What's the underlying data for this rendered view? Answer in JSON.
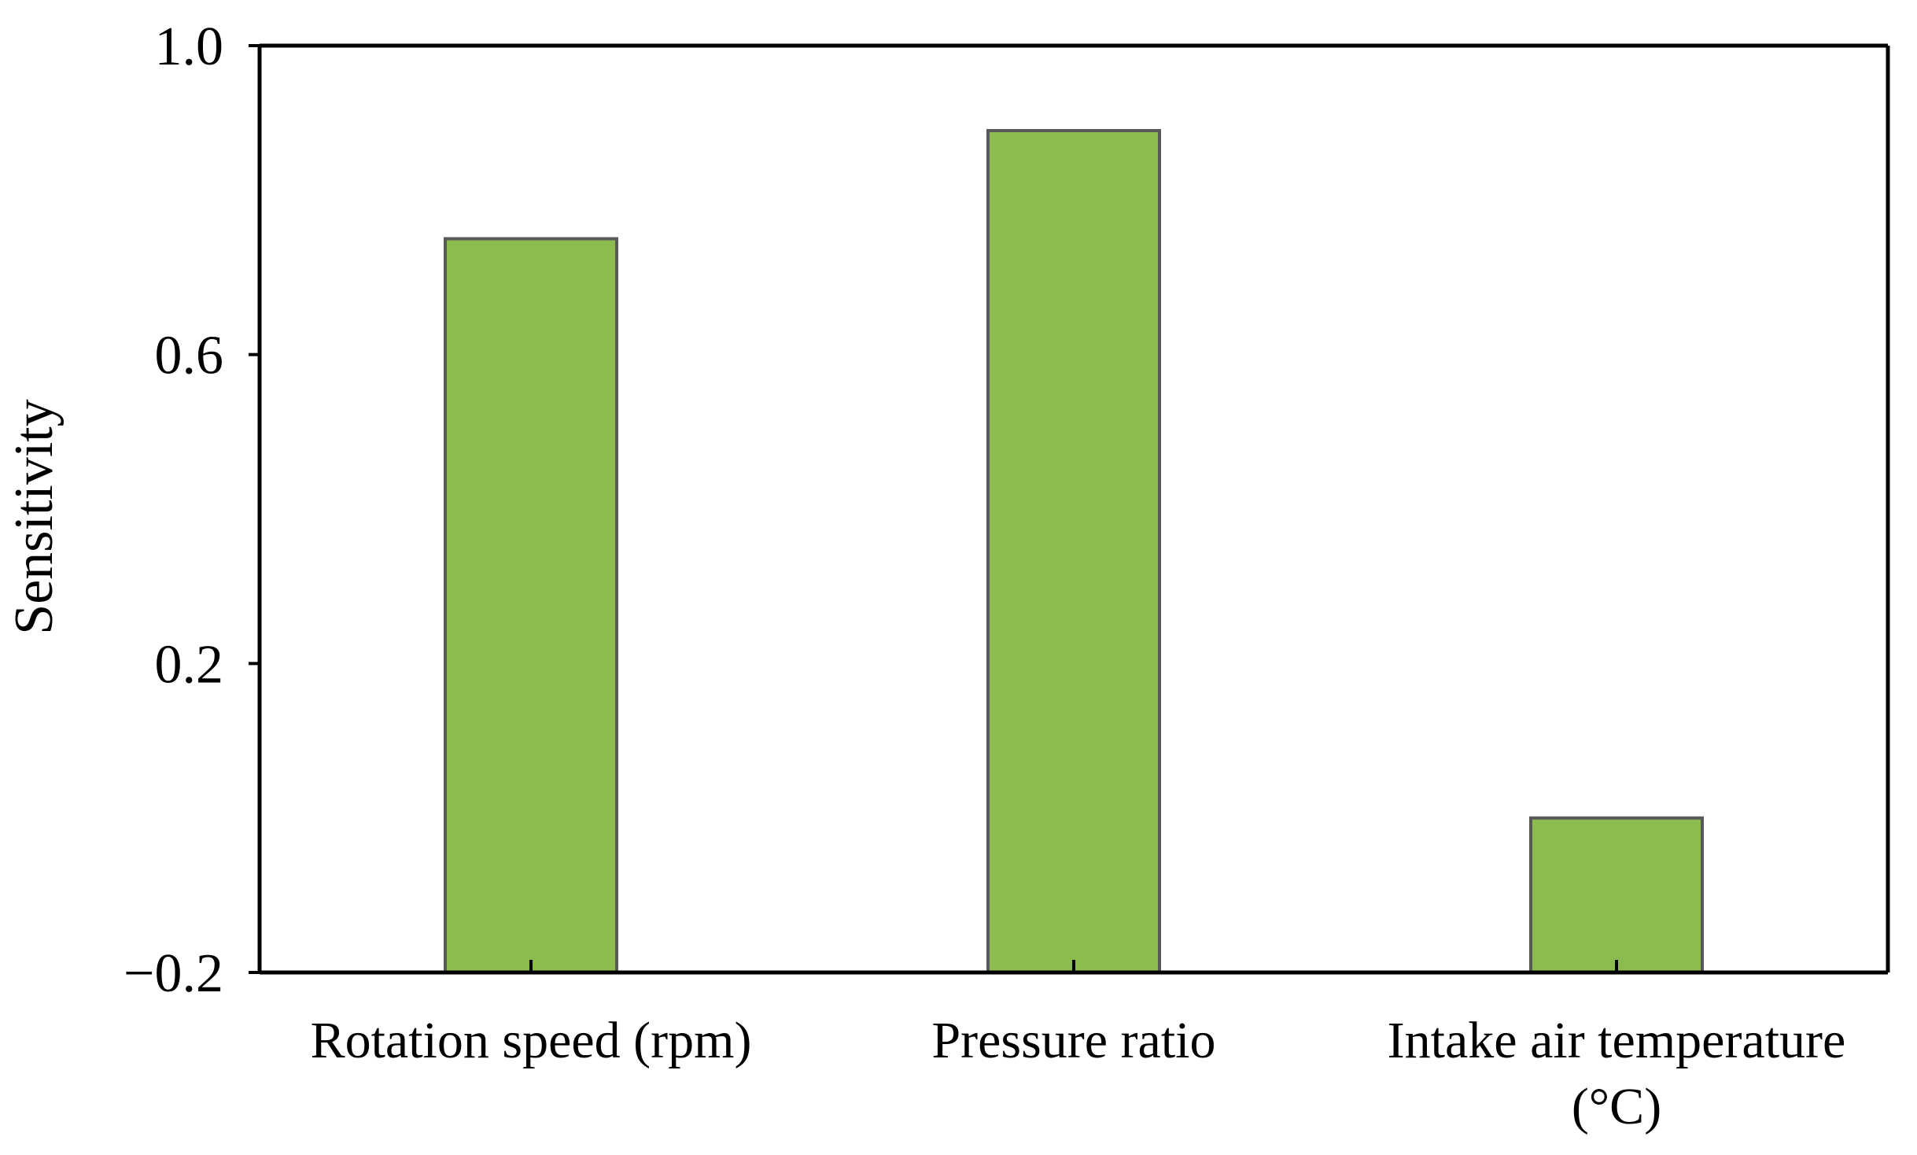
{
  "chart_data": {
    "type": "bar",
    "title": "",
    "xlabel": "",
    "ylabel": "Sensitivity",
    "categories": [
      [
        "Rotation speed (rpm)"
      ],
      [
        "Pressure ratio"
      ],
      [
        "Intake air temperature",
        "(°C)"
      ]
    ],
    "values": [
      0.75,
      0.89,
      0.0
    ],
    "ylim": [
      -0.2,
      1.0
    ],
    "yticks": [
      -0.2,
      0.2,
      0.6,
      1.0
    ],
    "ytick_labels": [
      "−0.2",
      "0.2",
      "0.6",
      "1.0"
    ],
    "grid": false,
    "colors": {
      "bar_fill": "#8cbc50",
      "bar_stroke": "#595959",
      "axis": "#000000",
      "background": "#ffffff"
    }
  }
}
